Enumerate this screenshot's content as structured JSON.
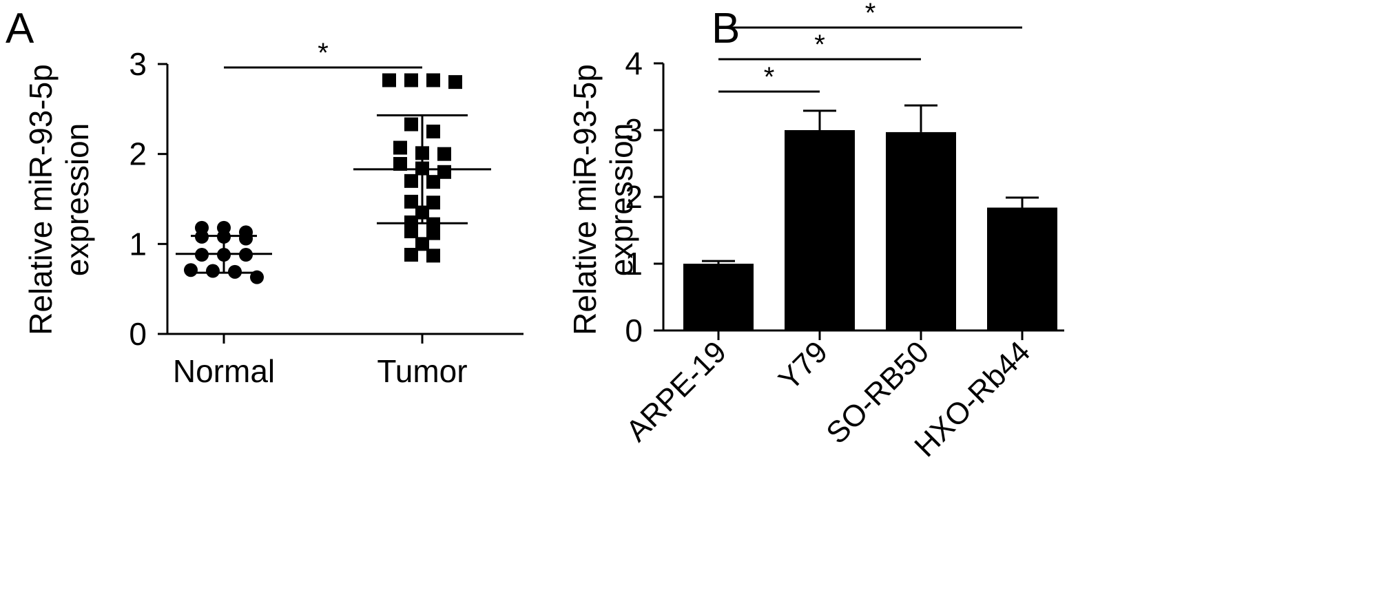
{
  "panel_a": {
    "label": "A"
  },
  "panel_b": {
    "label": "B"
  },
  "chart_data": [
    {
      "type": "scatter",
      "panel": "A",
      "categories": [
        "Normal",
        "Tumor"
      ],
      "ylabel_line1": "Relative miR-93-5p",
      "ylabel_line2": "expression",
      "ylim": [
        0,
        3
      ],
      "yticks": [
        0,
        1,
        2,
        3
      ],
      "grid": false,
      "series": [
        {
          "category": "Normal",
          "marker": "circle",
          "values": [
            1.18,
            1.13,
            1.18,
            1.08,
            1.08,
            1.06,
            0.88,
            0.88,
            0.88,
            0.71,
            0.7,
            0.69,
            0.63
          ],
          "mean": 0.89,
          "sd_upper": 1.09,
          "sd_lower": 0.68
        },
        {
          "category": "Tumor",
          "marker": "square",
          "values": [
            2.82,
            2.8,
            2.82,
            2.82,
            2.33,
            2.25,
            2.07,
            2.0,
            2.01,
            1.89,
            1.84,
            1.8,
            1.7,
            1.69,
            1.47,
            1.46,
            1.35,
            1.24,
            1.22,
            1.12,
            1.14,
            1.0,
            0.88,
            0.87
          ],
          "mean": 1.83,
          "sd_upper": 2.43,
          "sd_lower": 1.23
        }
      ],
      "significance": [
        {
          "from": "Normal",
          "to": "Tumor",
          "label": "*"
        }
      ]
    },
    {
      "type": "bar",
      "panel": "B",
      "categories": [
        "ARPE-19",
        "Y79",
        "SO-RB50",
        "HXO-Rb44"
      ],
      "values": [
        1.0,
        3.0,
        2.97,
        1.84
      ],
      "errors": [
        0.04,
        0.29,
        0.4,
        0.15
      ],
      "ylabel_line1": "Relative miR-93-5p",
      "ylabel_line2": "expression",
      "ylim": [
        0,
        4
      ],
      "yticks": [
        0,
        1,
        2,
        3,
        4
      ],
      "grid": false,
      "significance": [
        {
          "from": "ARPE-19",
          "to": "Y79",
          "label": "*"
        },
        {
          "from": "ARPE-19",
          "to": "SO-RB50",
          "label": "*"
        },
        {
          "from": "ARPE-19",
          "to": "HXO-Rb44",
          "label": "*"
        }
      ]
    }
  ]
}
